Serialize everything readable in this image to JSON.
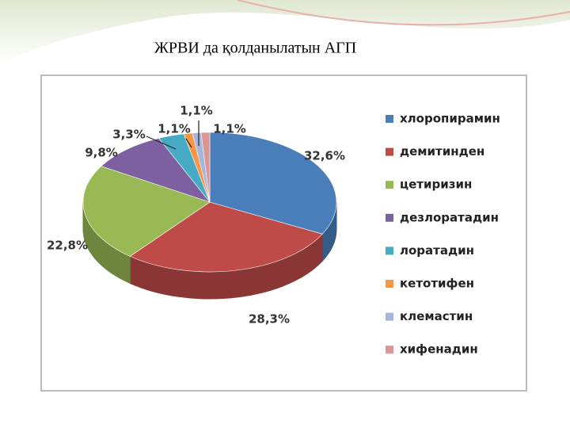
{
  "chart_data": {
    "type": "pie3d",
    "title": "ЖРВИ да қолданылатын АГП",
    "categories": [
      "хлоропирамин",
      "демитинден",
      "цетиризин",
      "дезлоратадин",
      "лоратадин",
      "кетотифен",
      "клемастин",
      "хифенадин"
    ],
    "values": [
      32.6,
      28.3,
      22.8,
      9.8,
      3.3,
      1.1,
      1.1,
      1.1
    ],
    "value_labels": [
      "32,6%",
      "28,3%",
      "22,8%",
      "9,8%",
      "3,3%",
      "1,1%",
      "1,1%",
      "1,1%"
    ],
    "colors": [
      "#4a7ebb",
      "#be4b48",
      "#98b954",
      "#7d60a0",
      "#46aac5",
      "#f79646",
      "#a3b6dc",
      "#d99694"
    ],
    "legend": "right"
  }
}
